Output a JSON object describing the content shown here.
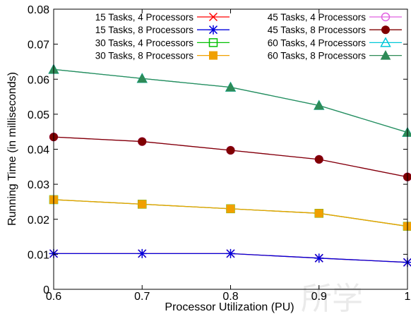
{
  "chart_data": {
    "type": "line",
    "title": "",
    "xlabel": "Processor Utilization (PU)",
    "ylabel": "Running Time (in milliseconds)",
    "xlim": [
      0.6,
      1.0
    ],
    "ylim": [
      0,
      0.08
    ],
    "xticks": [
      "0.6",
      "0.7",
      "0.8",
      "0.9",
      "1"
    ],
    "yticks": [
      "0",
      "0.01",
      "0.02",
      "0.03",
      "0.04",
      "0.05",
      "0.06",
      "0.07",
      "0.08"
    ],
    "grid": false,
    "legend_position": "top",
    "x": [
      0.6,
      0.7,
      0.8,
      0.9,
      1.0
    ],
    "series": [
      {
        "name": "15 Tasks, 4 Processors",
        "color": "#ff0000",
        "marker": "x",
        "values": [
          0.0102,
          0.0102,
          0.0102,
          0.0089,
          0.0077
        ]
      },
      {
        "name": "15 Tasks, 8 Processors",
        "color": "#0000dd",
        "marker": "star",
        "values": [
          0.0102,
          0.0102,
          0.0102,
          0.0089,
          0.0077
        ]
      },
      {
        "name": "30 Tasks, 4 Processors",
        "color": "#00c000",
        "marker": "open-square",
        "values": [
          0.0256,
          0.0243,
          0.023,
          0.0217,
          0.018
        ]
      },
      {
        "name": "30 Tasks, 8 Processors",
        "color": "#f0a000",
        "marker": "filled-square",
        "values": [
          0.0256,
          0.0243,
          0.023,
          0.0217,
          0.018
        ]
      },
      {
        "name": "45 Tasks, 4 Processors",
        "color": "#e060e0",
        "marker": "open-circle",
        "values": [
          0.0435,
          0.0422,
          0.0397,
          0.0371,
          0.0321
        ]
      },
      {
        "name": "45 Tasks, 8 Processors",
        "color": "#800000",
        "marker": "filled-circle",
        "values": [
          0.0435,
          0.0422,
          0.0397,
          0.0371,
          0.0321
        ]
      },
      {
        "name": "60 Tasks, 4 Processors",
        "color": "#00c8d8",
        "marker": "open-triangle",
        "values": [
          0.0628,
          0.0602,
          0.0577,
          0.0525,
          0.0448
        ]
      },
      {
        "name": "60 Tasks, 8 Processors",
        "color": "#2e8b57",
        "marker": "filled-triangle",
        "values": [
          0.0628,
          0.0602,
          0.0577,
          0.0525,
          0.0448
        ]
      }
    ]
  },
  "watermark_text": "所学"
}
